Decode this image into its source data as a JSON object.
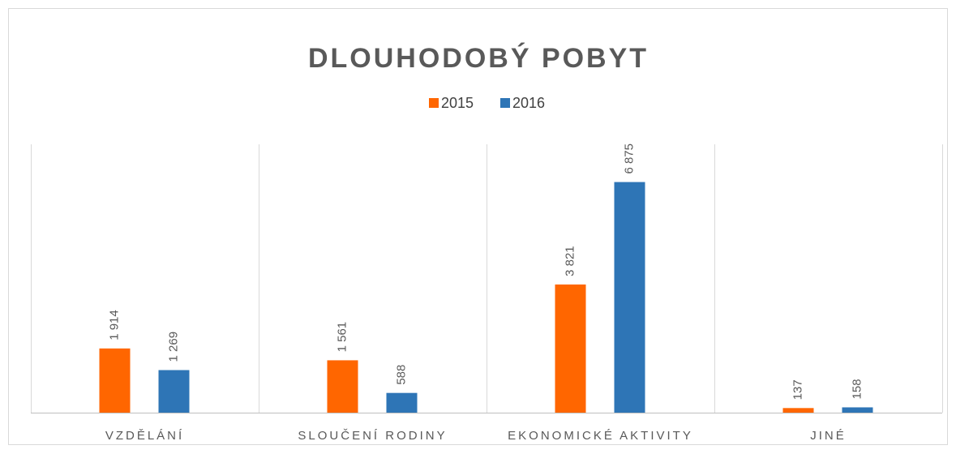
{
  "chart_data": {
    "type": "bar",
    "title": "DLOUHODOBÝ POBYT",
    "categories": [
      "VZDĚLÁNÍ",
      "SLOUČENÍ RODINY",
      "EKONOMICKÉ AKTIVITY",
      "JINÉ"
    ],
    "series": [
      {
        "name": "2015",
        "color": "#ff6600",
        "values": [
          1914,
          1561,
          3821,
          137
        ],
        "value_labels": [
          "1 914",
          "1 561",
          "3 821",
          "137"
        ]
      },
      {
        "name": "2016",
        "color": "#2e75b6",
        "values": [
          1269,
          588,
          6875,
          158
        ],
        "value_labels": [
          "1 269",
          "588",
          "6 875",
          "158"
        ]
      }
    ],
    "ylim": [
      0,
      8000
    ],
    "legend": "top"
  }
}
